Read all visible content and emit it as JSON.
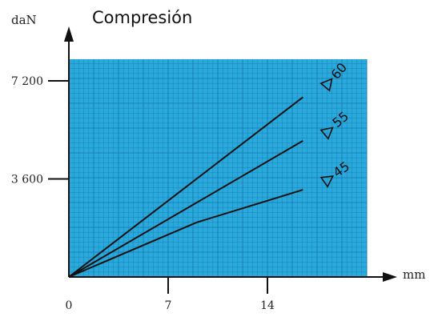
{
  "chart_data": {
    "type": "line",
    "title": "Compresión",
    "xlabel": "mm",
    "ylabel": "daN",
    "xlim": [
      0,
      22
    ],
    "ylim": [
      0,
      8000
    ],
    "x_ticks": [
      {
        "value": 0,
        "label": "0"
      },
      {
        "value": 7,
        "label": "7"
      },
      {
        "value": 14,
        "label": "14"
      }
    ],
    "y_ticks": [
      {
        "value": 3600,
        "label": "3 600"
      },
      {
        "value": 7200,
        "label": "7 200"
      }
    ],
    "grid": true,
    "series": [
      {
        "name": "60",
        "x": [
          0,
          16.5
        ],
        "y": [
          0,
          6600
        ]
      },
      {
        "name": "55",
        "x": [
          0,
          16.5
        ],
        "y": [
          0,
          5000
        ]
      },
      {
        "name": "45",
        "x": [
          0,
          9,
          16.5
        ],
        "y": [
          0,
          2000,
          3200
        ]
      }
    ],
    "colors": {
      "grid_bg": "#29a9dc",
      "grid_line": "#1a7fb3",
      "line": "#111111"
    }
  }
}
